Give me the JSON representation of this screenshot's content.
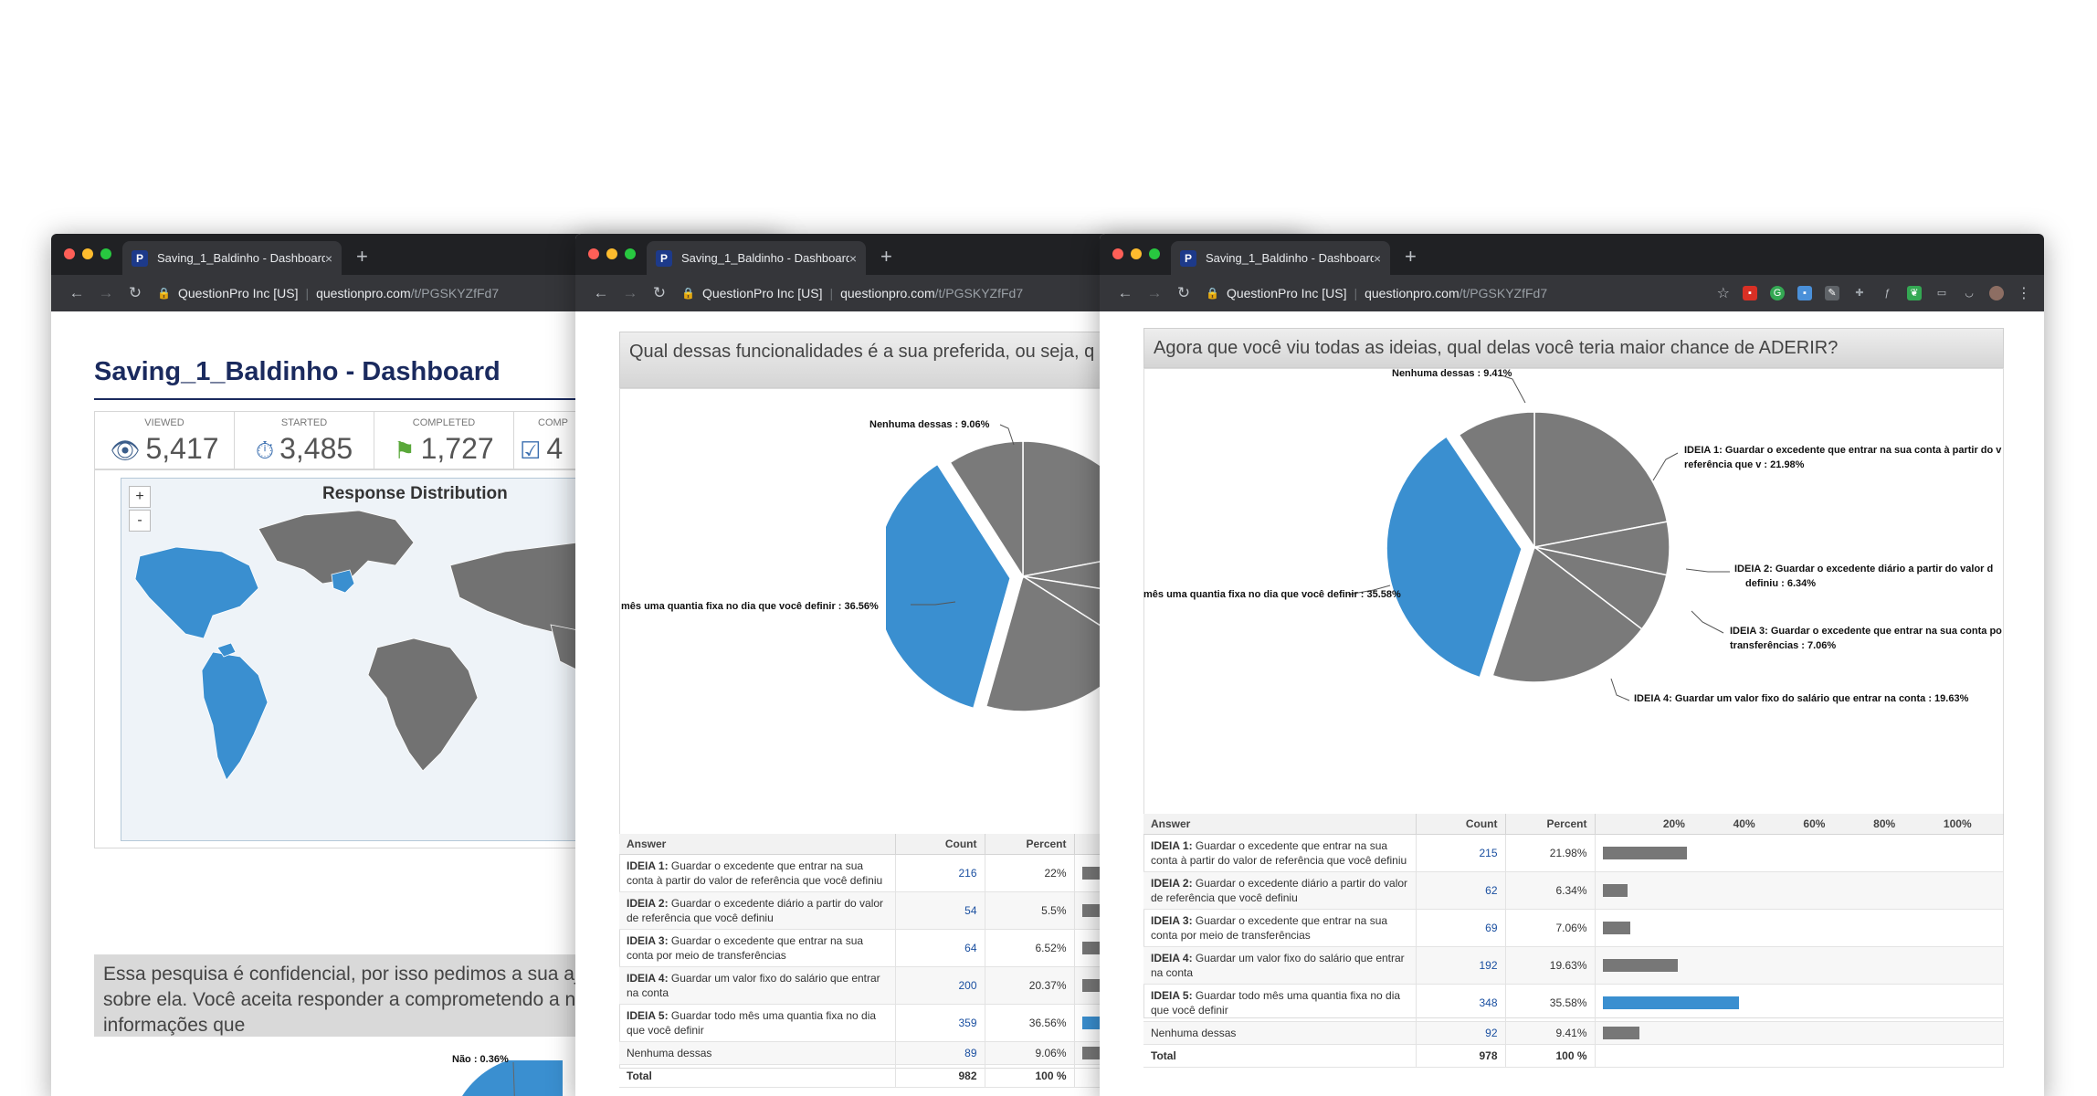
{
  "browser": {
    "tab_title": "Saving_1_Baldinho - Dashboard",
    "tab_close": "×",
    "new_tab": "+",
    "org": "QuestionPro Inc [US]",
    "url_host": "questionpro.com",
    "url_path": "/t/PGSKYZfFd7"
  },
  "dashboard": {
    "title": "Saving_1_Baldinho - Dashboard",
    "stats": [
      {
        "label": "VIEWED",
        "value": "5,417"
      },
      {
        "label": "STARTED",
        "value": "3,485"
      },
      {
        "label": "COMPLETED",
        "value": "1,727"
      },
      {
        "label": "COMP",
        "value": "4"
      }
    ],
    "map_title": "Response Distribution",
    "zoom_in": "+",
    "zoom_out": "-",
    "consent_text": "Essa pesquisa é confidencial, por isso pedimos a sua aju nenhuma  informação sobre ela. Você aceita responder a comprometendo a não compartilhar as informações que",
    "consent_pie_label": "Não : 0.36%"
  },
  "q1": {
    "title": "Qual dessas funcionalidades é a sua preferida, ou seja, q guardar dinheiro?",
    "pie_labels": [
      "Nenhuma dessas : 9.06%",
      "mês uma quantia fixa no dia que você definir : 36.56%"
    ],
    "headers": [
      "Answer",
      "Count",
      "Percent"
    ],
    "rows": [
      {
        "bold": "IDEIA 1:",
        "text": " Guardar o excedente que entrar na sua conta à partir do valor de referência que você definiu",
        "count": "216",
        "percent": "22%",
        "frac": 0.22,
        "hi": false
      },
      {
        "bold": "IDEIA 2:",
        "text": " Guardar o excedente diário a partir do valor de referência que você definiu",
        "count": "54",
        "percent": "5.5%",
        "frac": 0.055,
        "hi": false
      },
      {
        "bold": "IDEIA 3:",
        "text": " Guardar o excedente que entrar na sua conta por meio de transferências",
        "count": "64",
        "percent": "6.52%",
        "frac": 0.0652,
        "hi": false
      },
      {
        "bold": "IDEIA 4:",
        "text": " Guardar um valor fixo do salário que entrar na conta",
        "count": "200",
        "percent": "20.37%",
        "frac": 0.2037,
        "hi": false
      },
      {
        "bold": "IDEIA 5:",
        "text": " Guardar todo mês uma quantia fixa no dia que você definir",
        "count": "359",
        "percent": "36.56%",
        "frac": 0.3656,
        "hi": true
      },
      {
        "bold": "",
        "text": "Nenhuma dessas",
        "count": "89",
        "percent": "9.06%",
        "frac": 0.0906,
        "hi": false
      }
    ],
    "total": {
      "label": "Total",
      "count": "982",
      "percent": "100 %"
    }
  },
  "q2": {
    "title": "Agora que você viu todas as ideias, qual delas você teria maior chance de ADERIR?",
    "pie_labels": {
      "none": "Nenhuma dessas : 9.41%",
      "i1a": "IDEIA 1: Guardar o excedente que entrar na sua conta à partir do v",
      "i1b": "referência que v : 21.98%",
      "i2a": "IDEIA 2: Guardar o excedente diário a partir do valor d",
      "i2b": "definiu : 6.34%",
      "i3a": "IDEIA 3: Guardar o excedente que entrar na sua conta po",
      "i3b": "transferências : 7.06%",
      "i4": "IDEIA 4: Guardar um valor fixo do salário que entrar na conta : 19.63%",
      "i5": "mês uma quantia fixa no dia que você definir : 35.58%"
    },
    "headers": [
      "Answer",
      "Count",
      "Percent"
    ],
    "axis_ticks": [
      "20%",
      "40%",
      "60%",
      "80%",
      "100%"
    ],
    "rows": [
      {
        "bold": "IDEIA 1:",
        "text": " Guardar o excedente que entrar na sua conta à partir do valor de referência que você definiu",
        "count": "215",
        "percent": "21.98%",
        "frac": 0.2198,
        "hi": false
      },
      {
        "bold": "IDEIA 2:",
        "text": " Guardar o excedente diário a partir do valor de referência que você definiu",
        "count": "62",
        "percent": "6.34%",
        "frac": 0.0634,
        "hi": false
      },
      {
        "bold": "IDEIA 3:",
        "text": " Guardar o excedente que entrar na sua conta por meio de transferências",
        "count": "69",
        "percent": "7.06%",
        "frac": 0.0706,
        "hi": false
      },
      {
        "bold": "IDEIA 4:",
        "text": " Guardar um valor fixo do salário que entrar na conta",
        "count": "192",
        "percent": "19.63%",
        "frac": 0.1963,
        "hi": false
      },
      {
        "bold": "IDEIA 5:",
        "text": " Guardar todo mês uma quantia fixa no dia que você definir",
        "count": "348",
        "percent": "35.58%",
        "frac": 0.3558,
        "hi": true
      },
      {
        "bold": "",
        "text": "Nenhuma dessas",
        "count": "92",
        "percent": "9.41%",
        "frac": 0.0941,
        "hi": false
      }
    ],
    "total": {
      "label": "Total",
      "count": "978",
      "percent": "100 %"
    }
  },
  "colors": {
    "accent_blue": "#3a8fd0",
    "slice_gray": "#7a7a7a",
    "title_navy": "#1a2a5e"
  },
  "chart_data": [
    {
      "type": "pie",
      "title": "Qual dessas funcionalidades é a sua preferida, ou seja, q guardar dinheiro?",
      "categories": [
        "IDEIA 1",
        "IDEIA 2",
        "IDEIA 3",
        "IDEIA 4",
        "IDEIA 5",
        "Nenhuma dessas"
      ],
      "values": [
        22,
        5.5,
        6.52,
        20.37,
        36.56,
        9.06
      ]
    },
    {
      "type": "pie",
      "title": "Agora que você viu todas as ideias, qual delas você teria maior chance de ADERIR?",
      "categories": [
        "IDEIA 1",
        "IDEIA 2",
        "IDEIA 3",
        "IDEIA 4",
        "IDEIA 5",
        "Nenhuma dessas"
      ],
      "values": [
        21.98,
        6.34,
        7.06,
        19.63,
        35.58,
        9.41
      ]
    }
  ]
}
